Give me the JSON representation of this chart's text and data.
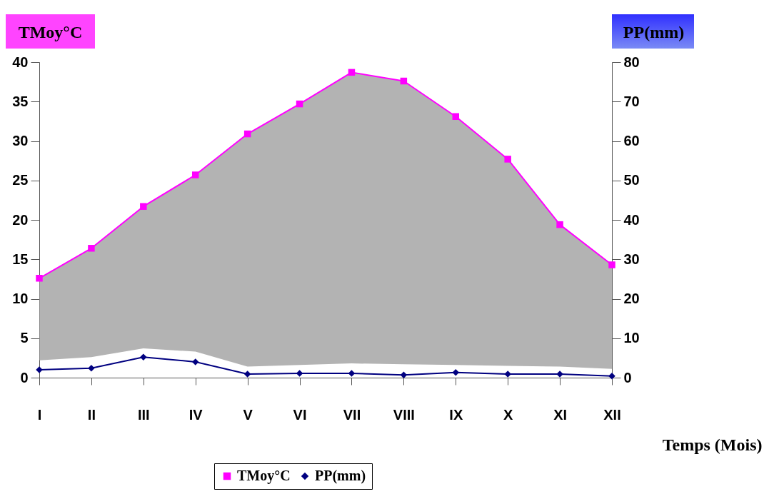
{
  "chart_data": {
    "type": "line",
    "xlabel": "Temps (Mois)",
    "ylabel": "TMoy°C",
    "y2label": "PP(mm)",
    "categories": [
      "I",
      "II",
      "III",
      "IV",
      "V",
      "VI",
      "VII",
      "VIII",
      "IX",
      "X",
      "XI",
      "XII"
    ],
    "series": [
      {
        "name": "TMoy°C",
        "color": "#ff00ff",
        "marker": "square",
        "values": [
          12.6,
          16.4,
          21.7,
          25.7,
          30.9,
          34.7,
          38.7,
          37.6,
          33.1,
          27.7,
          19.4,
          14.3
        ],
        "lower": [
          2.2,
          2.6,
          3.7,
          3.3,
          1.4,
          1.6,
          1.8,
          1.7,
          1.6,
          1.5,
          1.4,
          1.1
        ],
        "upper": [
          12.6,
          16.4,
          21.7,
          25.7,
          30.9,
          34.7,
          38.7,
          37.6,
          33.1,
          27.7,
          19.4,
          14.3
        ]
      },
      {
        "name": "PP(mm)",
        "color": "#000080",
        "marker": "diamond",
        "axis": "y2",
        "values": [
          2.0,
          2.4,
          5.2,
          4.0,
          0.9,
          1.1,
          1.1,
          0.7,
          1.3,
          0.9,
          0.9,
          0.4
        ]
      }
    ],
    "ylim": [
      0,
      40
    ],
    "yticks": [
      0,
      5,
      10,
      15,
      20,
      25,
      30,
      35,
      40
    ],
    "y2lim": [
      0,
      80
    ],
    "y2ticks": [
      0,
      10,
      20,
      30,
      40,
      50,
      60,
      70,
      80
    ],
    "grid": false,
    "legend": "bottom"
  }
}
